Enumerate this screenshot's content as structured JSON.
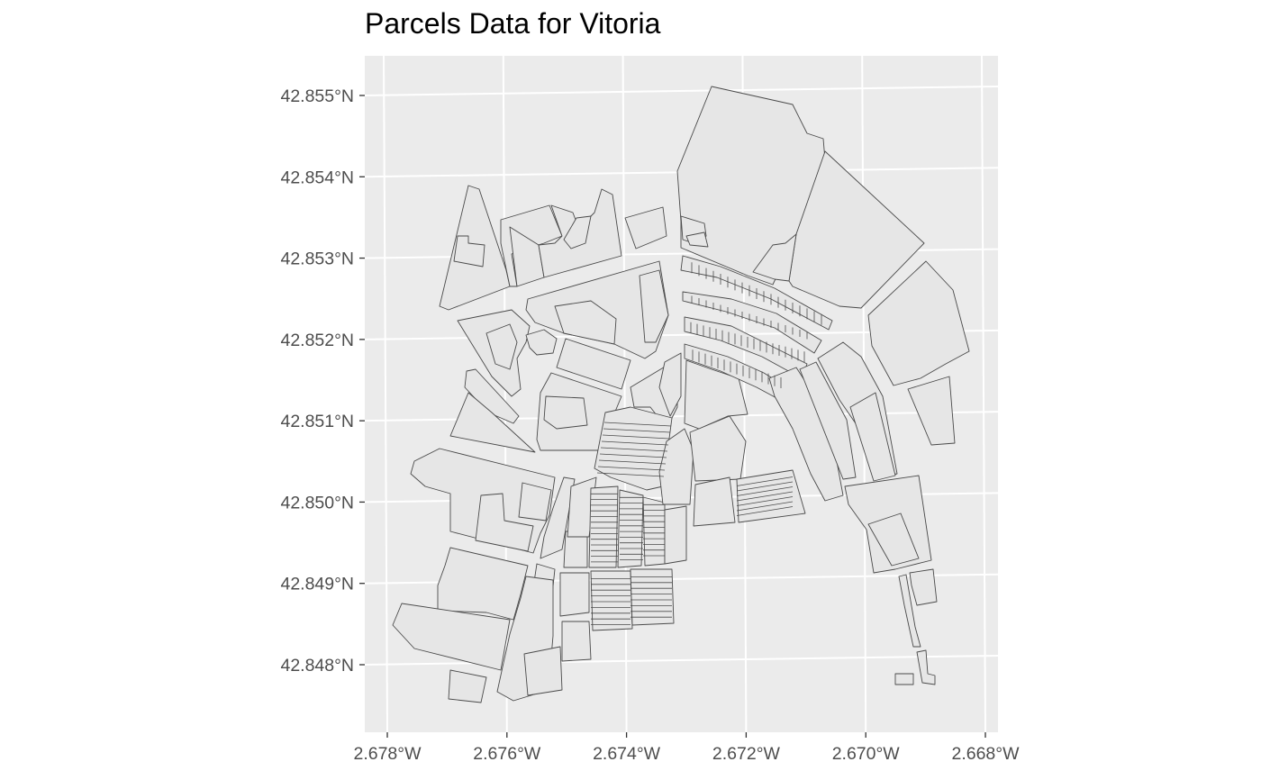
{
  "title": "Parcels Data for Vitoria",
  "map": {
    "background_color": "#ebebeb",
    "grid_color": "#ffffff",
    "parcel_fill": "#e6e6e6",
    "parcel_stroke": "#4a4a4a",
    "lat_ticks": [
      {
        "value": 42.855,
        "label": "42.855°N"
      },
      {
        "value": 42.854,
        "label": "42.854°N"
      },
      {
        "value": 42.853,
        "label": "42.853°N"
      },
      {
        "value": 42.852,
        "label": "42.852°N"
      },
      {
        "value": 42.851,
        "label": "42.851°N"
      },
      {
        "value": 42.85,
        "label": "42.850°N"
      },
      {
        "value": 42.849,
        "label": "42.849°N"
      },
      {
        "value": 42.848,
        "label": "42.848°N"
      }
    ],
    "lon_ticks": [
      {
        "value": -2.678,
        "label": "2.678°W"
      },
      {
        "value": -2.676,
        "label": "2.676°W"
      },
      {
        "value": -2.674,
        "label": "2.674°W"
      },
      {
        "value": -2.672,
        "label": "2.672°W"
      },
      {
        "value": -2.67,
        "label": "2.670°W"
      },
      {
        "value": -2.668,
        "label": "2.668°W"
      }
    ]
  }
}
